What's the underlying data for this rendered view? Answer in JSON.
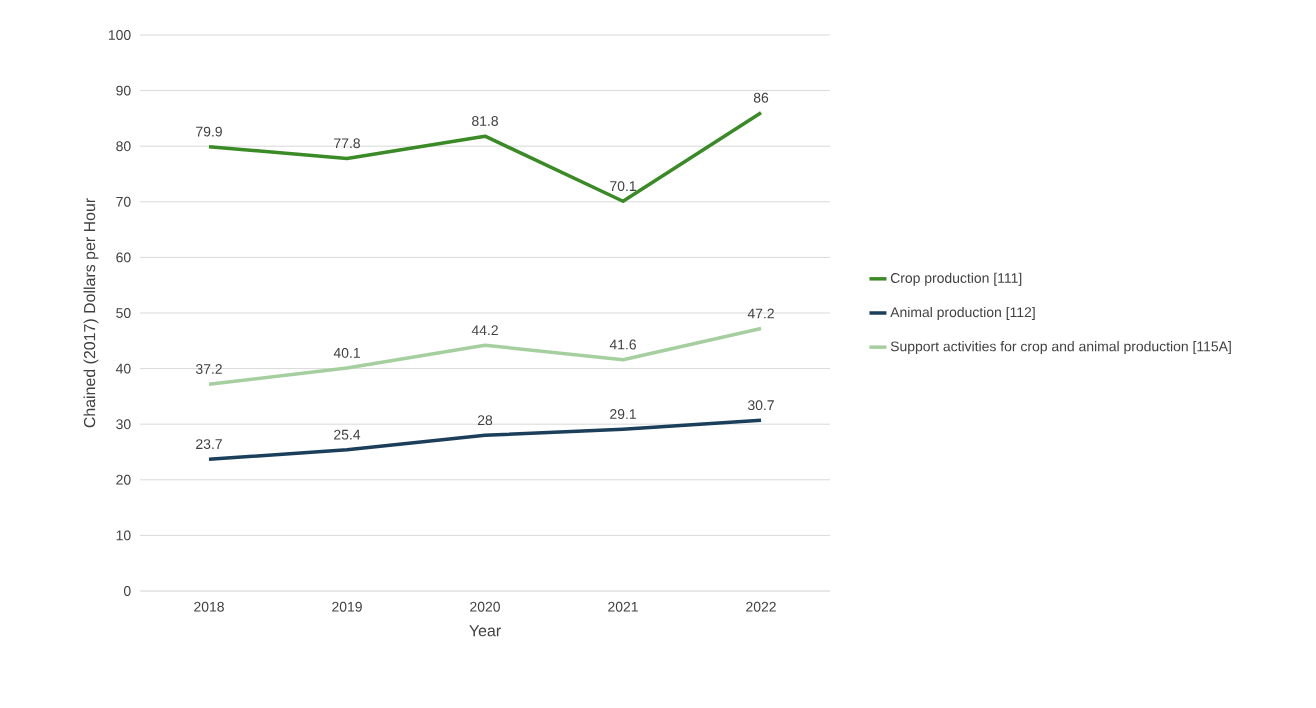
{
  "chart_data": {
    "type": "line",
    "xlabel": "Year",
    "ylabel": "Chained (2017) Dollars per Hour",
    "categories": [
      "2018",
      "2019",
      "2020",
      "2021",
      "2022"
    ],
    "series": [
      {
        "name": "Crop production  [111]",
        "color": "#3a8a26",
        "values": [
          79.9,
          77.8,
          81.8,
          70.1,
          86
        ]
      },
      {
        "name": "Animal production  [112]",
        "color": "#1b3f5a",
        "values": [
          23.7,
          25.4,
          28,
          29.1,
          30.7
        ]
      },
      {
        "name": "Support activities for crop and animal production  [115A]",
        "color": "#a6cfa0",
        "values": [
          37.2,
          40.1,
          44.2,
          41.6,
          47.2
        ]
      }
    ],
    "ylim": [
      0,
      100
    ],
    "yticks": [
      0,
      10,
      20,
      30,
      40,
      50,
      60,
      70,
      80,
      90,
      100
    ],
    "grid": "y",
    "legend": "right",
    "data_labels": true,
    "marker": "none",
    "line_style": "solid"
  }
}
